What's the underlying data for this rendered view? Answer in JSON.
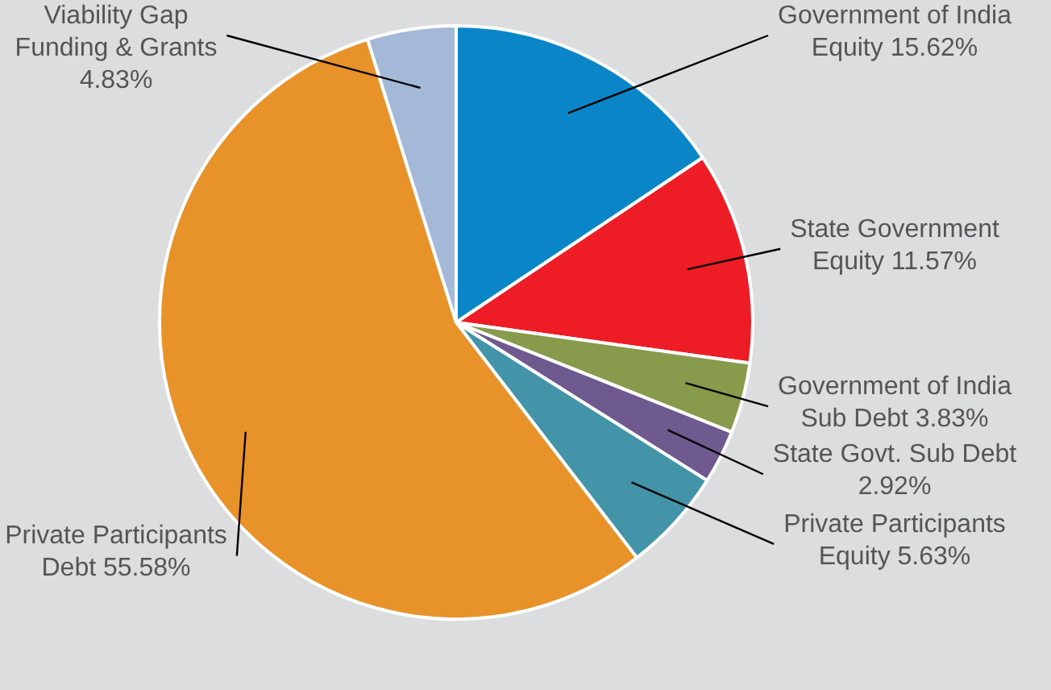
{
  "chart_data": {
    "type": "pie",
    "categories": [
      "Government of India Equity",
      "State Government Equity",
      "Government of India Sub Debt",
      "State Govt. Sub Debt",
      "Private Participants Equity",
      "Private Participants Debt",
      "Viability Gap Funding & Grants"
    ],
    "values": [
      15.62,
      11.57,
      3.83,
      2.92,
      5.63,
      55.58,
      4.83
    ],
    "value_labels": [
      "15.62%",
      "11.57%",
      "3.83%",
      "2.92%",
      "5.63%",
      "55.58%",
      "4.83%"
    ],
    "colors": [
      "#0a86c8",
      "#ee1c25",
      "#889a4c",
      "#6e5a8e",
      "#4394a8",
      "#e8922a",
      "#a4b8d8"
    ],
    "legend": false
  }
}
